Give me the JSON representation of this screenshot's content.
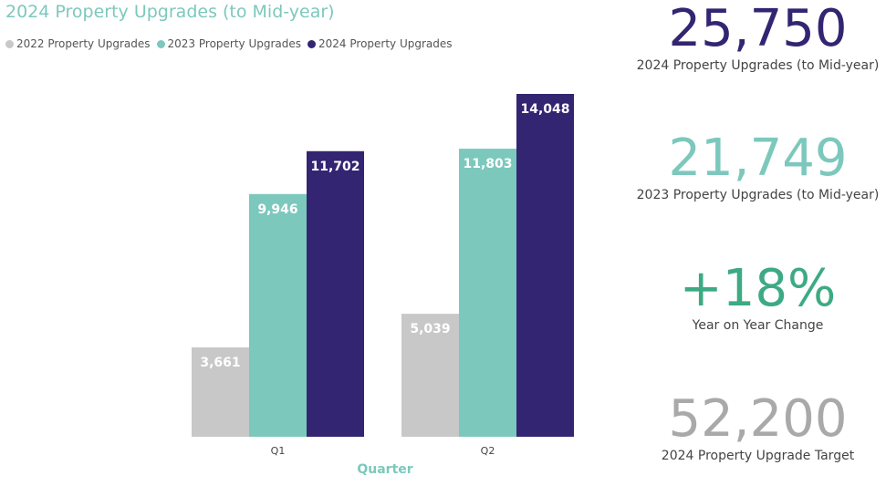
{
  "chart_data": {
    "type": "bar",
    "title": "2024 Property Upgrades (to Mid-year)",
    "xlabel": "Quarter",
    "ylabel": "",
    "categories": [
      "Q1",
      "Q2"
    ],
    "series": [
      {
        "name": "2022 Property Upgrades",
        "values": [
          3661,
          5039
        ],
        "labels": [
          "3,661",
          "5,039"
        ],
        "color": "#c8c8c8"
      },
      {
        "name": "2023 Property Upgrades",
        "values": [
          9946,
          11803
        ],
        "labels": [
          "9,946",
          "11,803"
        ],
        "color": "#7dc8bd"
      },
      {
        "name": "2024 Property Upgrades",
        "values": [
          11702,
          14048
        ],
        "labels": [
          "11,702",
          "14,048"
        ],
        "color": "#332572"
      }
    ],
    "ylim": [
      0,
      14048
    ],
    "grid": false,
    "legend": "top-left"
  },
  "kpis": [
    {
      "value": "25,750",
      "label": "2024 Property Upgrades (to Mid-year)",
      "color": "#332572"
    },
    {
      "value": "21,749",
      "label": "2023 Property Upgrades (to Mid-year)",
      "color": "#7dc8bd"
    },
    {
      "value": "+18%",
      "label": "Year on Year Change",
      "color": "#3daa84"
    },
    {
      "value": "52,200",
      "label": "2024 Property Upgrade Target",
      "color": "#a9a9a9"
    }
  ],
  "colors": {
    "title": "#7dc8bd",
    "xlabel": "#7dc8bd",
    "bar_label_light": "#ffffff"
  }
}
